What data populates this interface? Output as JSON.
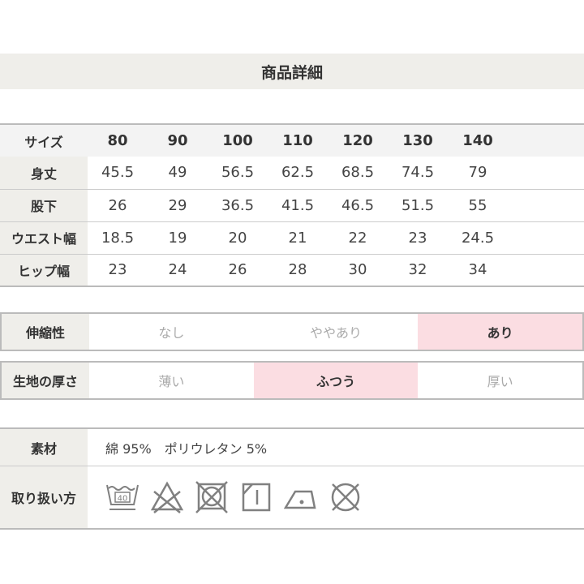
{
  "title": "商品詳細",
  "size_table": {
    "header_label": "サイズ",
    "sizes": [
      "80",
      "90",
      "100",
      "110",
      "120",
      "130",
      "140"
    ],
    "rows": [
      {
        "label": "身丈",
        "values": [
          "45.5",
          "49",
          "56.5",
          "62.5",
          "68.5",
          "74.5",
          "79"
        ]
      },
      {
        "label": "股下",
        "values": [
          "26",
          "29",
          "36.5",
          "41.5",
          "46.5",
          "51.5",
          "55"
        ]
      },
      {
        "label": "ウエスト幅",
        "values": [
          "18.5",
          "19",
          "20",
          "21",
          "22",
          "23",
          "24.5"
        ]
      },
      {
        "label": "ヒップ幅",
        "values": [
          "23",
          "24",
          "26",
          "28",
          "30",
          "32",
          "34"
        ]
      }
    ]
  },
  "stretch": {
    "label": "伸縮性",
    "options": [
      "なし",
      "ややあり",
      "あり"
    ],
    "selected": "あり"
  },
  "thickness": {
    "label": "生地の厚さ",
    "options": [
      "薄い",
      "ふつう",
      "厚い"
    ],
    "selected": "ふつう"
  },
  "material": {
    "label": "素材",
    "value": "綿 95%　ポリウレタン 5%"
  },
  "care": {
    "label": "取り扱い方",
    "wash_temp": "40",
    "icons": [
      "wash-40-icon",
      "no-bleach-icon",
      "no-tumble-dry-icon",
      "drip-dry-shade-icon",
      "iron-low-icon",
      "no-dry-clean-icon"
    ]
  },
  "colors": {
    "label_bg": "#efeeea",
    "selected_bg": "#fbdde2",
    "border": "#bbbbbb",
    "icon": "#808080"
  }
}
